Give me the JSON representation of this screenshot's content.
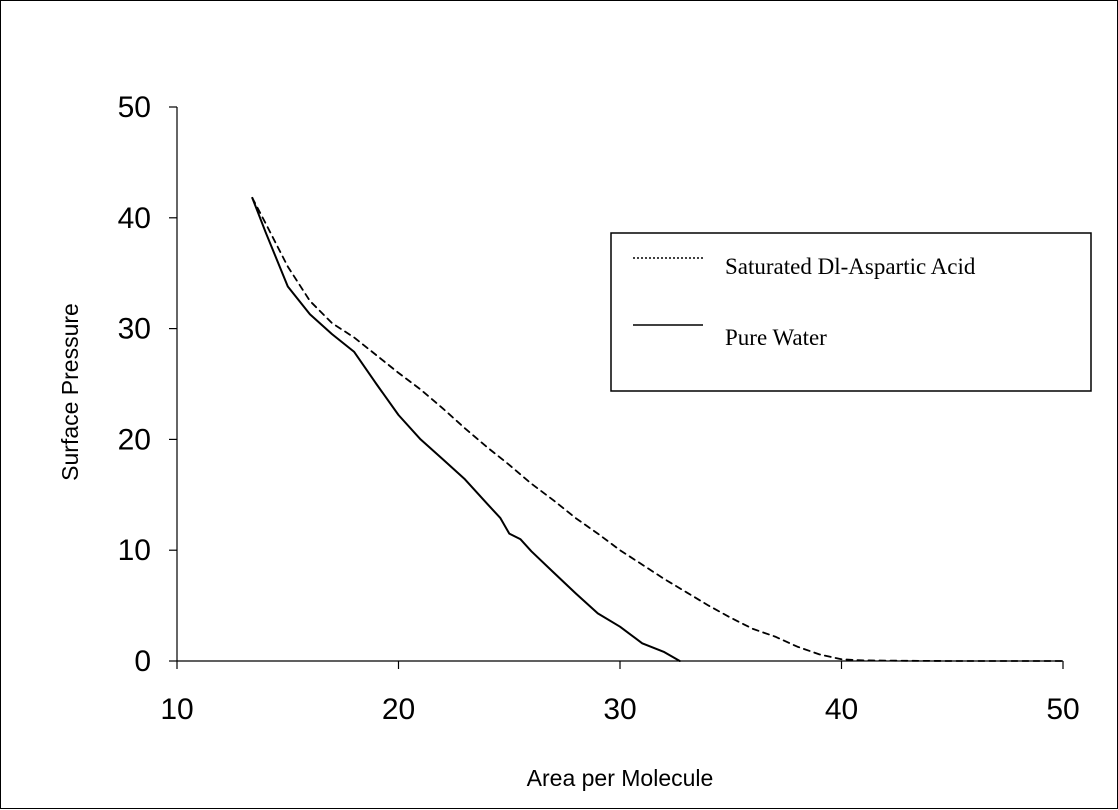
{
  "chart_data": {
    "type": "line",
    "xlabel": "Area per Molecule",
    "ylabel": "Surface Pressure",
    "xlim": [
      10,
      50
    ],
    "ylim": [
      0,
      50
    ],
    "xticks": [
      10,
      20,
      30,
      40,
      50
    ],
    "yticks": [
      0,
      10,
      20,
      30,
      40,
      50
    ],
    "grid": false,
    "legend_position": "right",
    "series": [
      {
        "name": "Saturated Dl-Aspartic Acid",
        "style": "dashed",
        "color": "#000000",
        "points": [
          [
            13.4,
            41.8
          ],
          [
            14.0,
            39.5
          ],
          [
            15.0,
            35.6
          ],
          [
            16.0,
            32.5
          ],
          [
            17.0,
            30.5
          ],
          [
            18.0,
            29.2
          ],
          [
            19.0,
            27.6
          ],
          [
            20.0,
            26.0
          ],
          [
            21.0,
            24.5
          ],
          [
            22.0,
            22.8
          ],
          [
            23.0,
            21.0
          ],
          [
            24.0,
            19.3
          ],
          [
            25.0,
            17.7
          ],
          [
            26.0,
            16.0
          ],
          [
            27.0,
            14.5
          ],
          [
            28.0,
            12.9
          ],
          [
            29.0,
            11.5
          ],
          [
            30.0,
            10.0
          ],
          [
            31.0,
            8.7
          ],
          [
            32.0,
            7.4
          ],
          [
            33.0,
            6.2
          ],
          [
            34.0,
            5.0
          ],
          [
            35.0,
            3.9
          ],
          [
            36.0,
            2.9
          ],
          [
            37.0,
            2.2
          ],
          [
            38.0,
            1.3
          ],
          [
            39.0,
            0.6
          ],
          [
            40.0,
            0.15
          ],
          [
            41.0,
            0.05
          ],
          [
            43.0,
            0.02
          ],
          [
            45.0,
            0.0
          ],
          [
            50.0,
            0.0
          ]
        ]
      },
      {
        "name": "Pure Water",
        "style": "solid",
        "color": "#000000",
        "points": [
          [
            13.4,
            41.8
          ],
          [
            14.0,
            38.7
          ],
          [
            15.0,
            33.8
          ],
          [
            16.0,
            31.3
          ],
          [
            17.0,
            29.5
          ],
          [
            18.0,
            27.9
          ],
          [
            19.0,
            25.0
          ],
          [
            20.0,
            22.2
          ],
          [
            21.0,
            20.0
          ],
          [
            22.0,
            18.2
          ],
          [
            23.0,
            16.4
          ],
          [
            24.0,
            14.2
          ],
          [
            24.6,
            12.9
          ],
          [
            25.0,
            11.5
          ],
          [
            25.5,
            11.0
          ],
          [
            26.0,
            9.9
          ],
          [
            27.0,
            8.0
          ],
          [
            28.0,
            6.1
          ],
          [
            29.0,
            4.3
          ],
          [
            30.0,
            3.1
          ],
          [
            31.0,
            1.6
          ],
          [
            32.0,
            0.8
          ],
          [
            32.7,
            0.0
          ]
        ]
      }
    ]
  }
}
